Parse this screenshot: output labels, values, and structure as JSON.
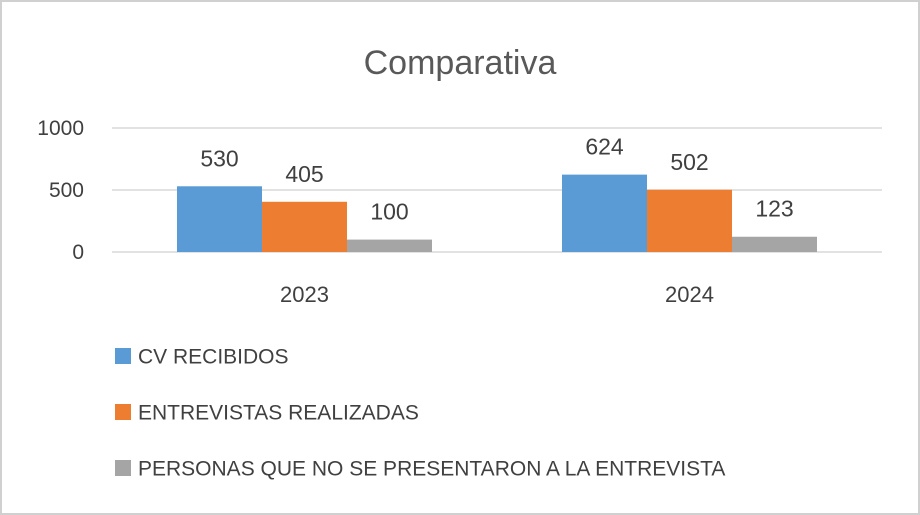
{
  "chart_data": {
    "type": "bar",
    "title": "Comparativa",
    "xlabel": "",
    "ylabel": "",
    "categories": [
      "2023",
      "2024"
    ],
    "series": [
      {
        "name": "CV RECIBIDOS",
        "values": [
          530,
          624
        ],
        "color": "#5B9BD5"
      },
      {
        "name": "ENTREVISTAS REALIZADAS",
        "values": [
          405,
          502
        ],
        "color": "#ED7D31"
      },
      {
        "name": "PERSONAS QUE NO SE PRESENTARON A LA ENTREVISTA",
        "values": [
          100,
          123
        ],
        "color": "#A5A5A5"
      }
    ],
    "ylim": [
      0,
      1000
    ],
    "yticks": [
      "0",
      "500",
      "1000"
    ],
    "grid": true,
    "legend_position": "bottom-left"
  }
}
